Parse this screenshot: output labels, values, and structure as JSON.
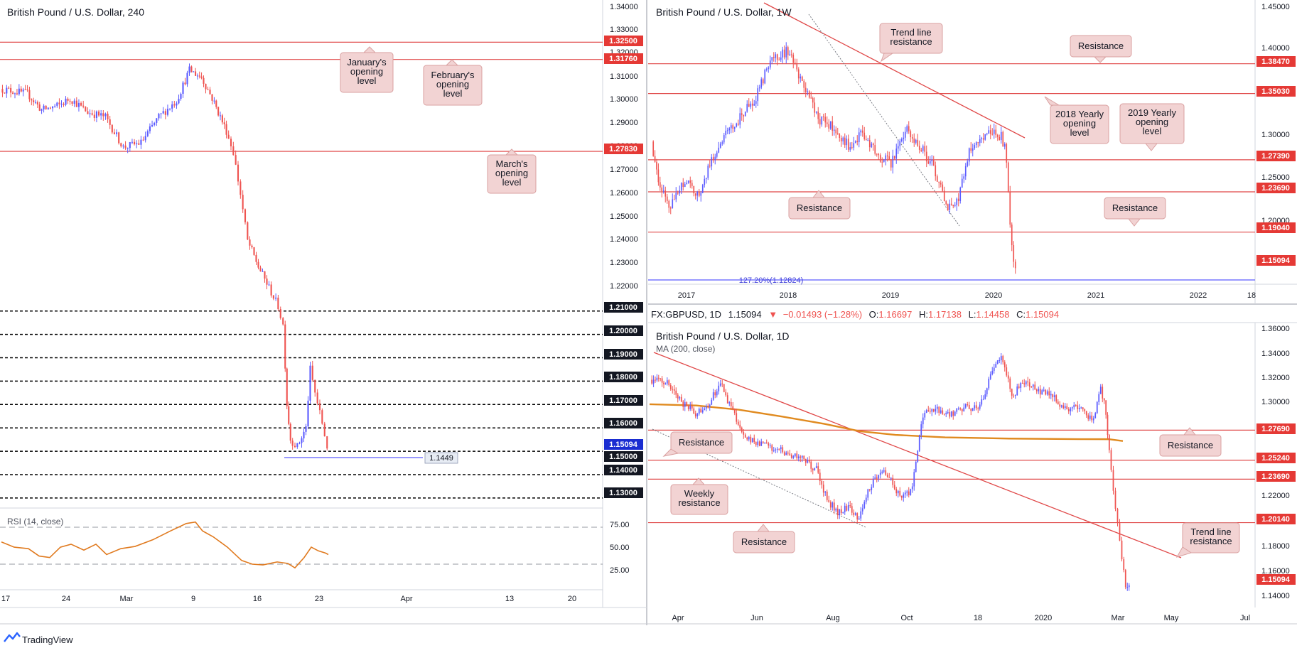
{
  "colors": {
    "bull": "#5b5bff",
    "bear": "#ef5350",
    "level_line": "#e04848",
    "level_tag": "#e53935",
    "current_tag": "#1a2dd1",
    "dotted": "#000000",
    "rsi": "#e07a1f",
    "ma": "#e08a1f",
    "callout_bg": "#f2d3d3",
    "callout_border": "#d9a0a0",
    "fib": "#5b5bff"
  },
  "panels": {
    "h4": {
      "title": "British Pound / U.S. Dollar, 240",
      "y_ticks": [
        "1.34000",
        "1.33000",
        "1.32000",
        "1.31000",
        "1.30000",
        "1.29000",
        "1.28000",
        "1.27000",
        "1.26000",
        "1.25000",
        "1.24000",
        "1.23000",
        "1.22000"
      ],
      "x_ticks": [
        "17",
        "24",
        "Mar",
        "9",
        "16",
        "23",
        "Apr",
        "13",
        "20"
      ],
      "levels": [
        {
          "value": "1.32500",
          "style": "solid"
        },
        {
          "value": "1.31760",
          "style": "solid"
        },
        {
          "value": "1.27830",
          "style": "solid"
        },
        {
          "value": "1.21000",
          "style": "dotted"
        },
        {
          "value": "1.20000",
          "style": "dotted"
        },
        {
          "value": "1.19000",
          "style": "dotted"
        },
        {
          "value": "1.18000",
          "style": "dotted"
        },
        {
          "value": "1.17000",
          "style": "dotted"
        },
        {
          "value": "1.16000",
          "style": "dotted"
        },
        {
          "value": "1.15000",
          "style": "dotted"
        },
        {
          "value": "1.14000",
          "style": "dotted"
        },
        {
          "value": "1.13000",
          "style": "dotted"
        }
      ],
      "current_price": "1.15094",
      "hline_label": "1.1449",
      "callouts": [
        "January's opening level",
        "February's opening level",
        "March's opening level"
      ],
      "rsi_title": "RSI (14, close)",
      "rsi_ticks": [
        "75.00",
        "50.00",
        "25.00"
      ]
    },
    "w1": {
      "title": "British Pound / U.S. Dollar, 1W",
      "y_ticks": [
        "1.45000",
        "1.40000",
        "1.30000",
        "1.25000",
        "1.20000"
      ],
      "x_ticks": [
        "2017",
        "2018",
        "2019",
        "2020",
        "2021",
        "2022",
        "18"
      ],
      "levels": [
        "1.38470",
        "1.35030",
        "1.27390",
        "1.23690",
        "1.19040"
      ],
      "current_price": "1.15094",
      "fib_label": "127.20%(1.12824)",
      "callouts": [
        "Trend line resistance",
        "Resistance",
        "2018 Yearly opening level",
        "2019 Yearly opening level",
        "Resistance",
        "Resistance"
      ]
    },
    "d1": {
      "info": {
        "symbol": "FX:GBPUSD, 1D",
        "price": "1.15094",
        "change": "−0.01493 (−1.28%)",
        "o_label": "O:",
        "o": "1.16697",
        "h_label": "H:",
        "h": "1.17138",
        "l_label": "L:",
        "l": "1.14458",
        "c_label": "C:",
        "c": "1.15094"
      },
      "title": "British Pound / U.S. Dollar, 1D",
      "ma_label": "MA (200, close)",
      "y_ticks": [
        "1.36000",
        "1.34000",
        "1.32000",
        "1.30000",
        "1.22000",
        "1.18000",
        "1.16000",
        "1.14000"
      ],
      "x_ticks": [
        "Apr",
        "Jun",
        "Aug",
        "Oct",
        "18",
        "2020",
        "Mar",
        "May",
        "Jul"
      ],
      "levels": [
        "1.27690",
        "1.25240",
        "1.23690",
        "1.20140"
      ],
      "current_price": "1.15094",
      "callouts": [
        "Resistance",
        "Weekly resistance",
        "Resistance",
        "Resistance",
        "Trend line resistance"
      ]
    }
  },
  "footer": {
    "brand": "TradingView"
  },
  "chart_data": [
    {
      "type": "line",
      "title": "British Pound / U.S. Dollar, 240",
      "x": [
        "17",
        "24",
        "Mar",
        "9",
        "16",
        "23"
      ],
      "series": [
        {
          "values": [
            1.302,
            1.295,
            1.279,
            1.314,
            1.23,
            1.1509
          ]
        }
      ],
      "ylim": [
        1.125,
        1.345
      ],
      "xlabel": "",
      "ylabel": ""
    },
    {
      "type": "line",
      "title": "British Pound / U.S. Dollar, 1W",
      "x": [
        "2017",
        "2018",
        "2019",
        "2020"
      ],
      "series": [
        {
          "values": [
            1.235,
            1.39,
            1.29,
            1.1509
          ]
        }
      ],
      "ylim": [
        1.11,
        1.455
      ]
    },
    {
      "type": "line",
      "title": "British Pound / U.S. Dollar, 1D",
      "x": [
        "Apr",
        "Jun",
        "Aug",
        "Oct",
        "18",
        "2020",
        "Mar"
      ],
      "series": [
        {
          "values": [
            1.305,
            1.265,
            1.212,
            1.23,
            1.293,
            1.307,
            1.1509
          ]
        }
      ],
      "ylim": [
        1.132,
        1.362
      ]
    }
  ]
}
